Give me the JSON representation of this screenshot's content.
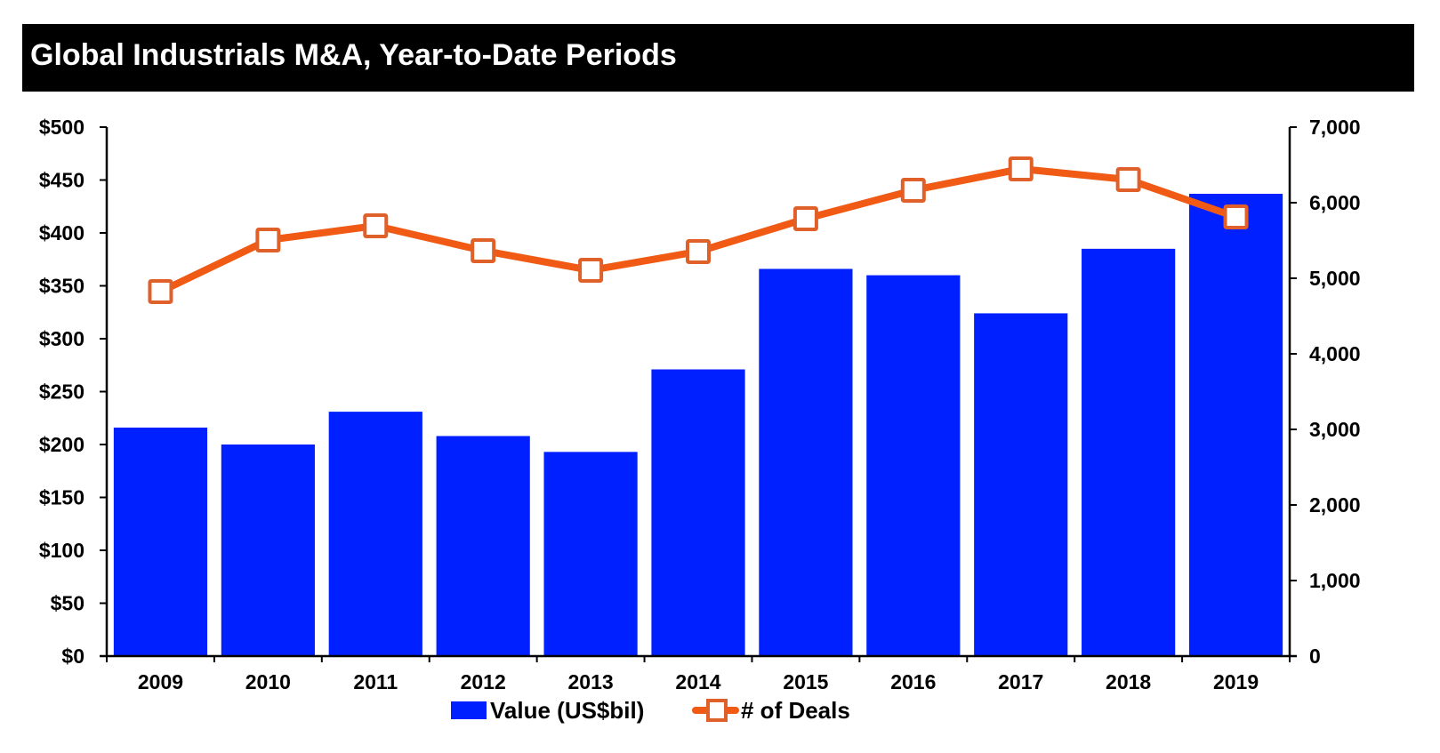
{
  "chart_data": {
    "type": "bar",
    "title": "Global Industrials M&A, Year-to-Date Periods",
    "xlabel": "",
    "ylabel": "",
    "ylabel_right": "",
    "categories": [
      "2009",
      "2010",
      "2011",
      "2012",
      "2013",
      "2014",
      "2015",
      "2016",
      "2017",
      "2018",
      "2019"
    ],
    "series": [
      {
        "name": "Value (US$bil)",
        "type": "bar",
        "axis": "left",
        "color": "#0020FF",
        "values": [
          216,
          200,
          231,
          208,
          193,
          271,
          366,
          360,
          324,
          385,
          437
        ]
      },
      {
        "name": "# of Deals",
        "type": "line",
        "axis": "right",
        "color": "#F05A14",
        "marker": "square",
        "marker_fill": "#FFFFFF",
        "values": [
          4824,
          5506,
          5694,
          5365,
          5106,
          5353,
          5788,
          6165,
          6447,
          6306,
          5812
        ]
      }
    ],
    "ylim": [
      0,
      500
    ],
    "ylim_right": [
      0,
      7000
    ],
    "yticks": [
      "$0",
      "$50",
      "$100",
      "$150",
      "$200",
      "$250",
      "$300",
      "$350",
      "$400",
      "$450",
      "$500"
    ],
    "yticks_right": [
      "0",
      "1,000",
      "2,000",
      "3,000",
      "4,000",
      "5,000",
      "6,000",
      "7,000"
    ],
    "grid": false,
    "legend": "bottom-center"
  }
}
